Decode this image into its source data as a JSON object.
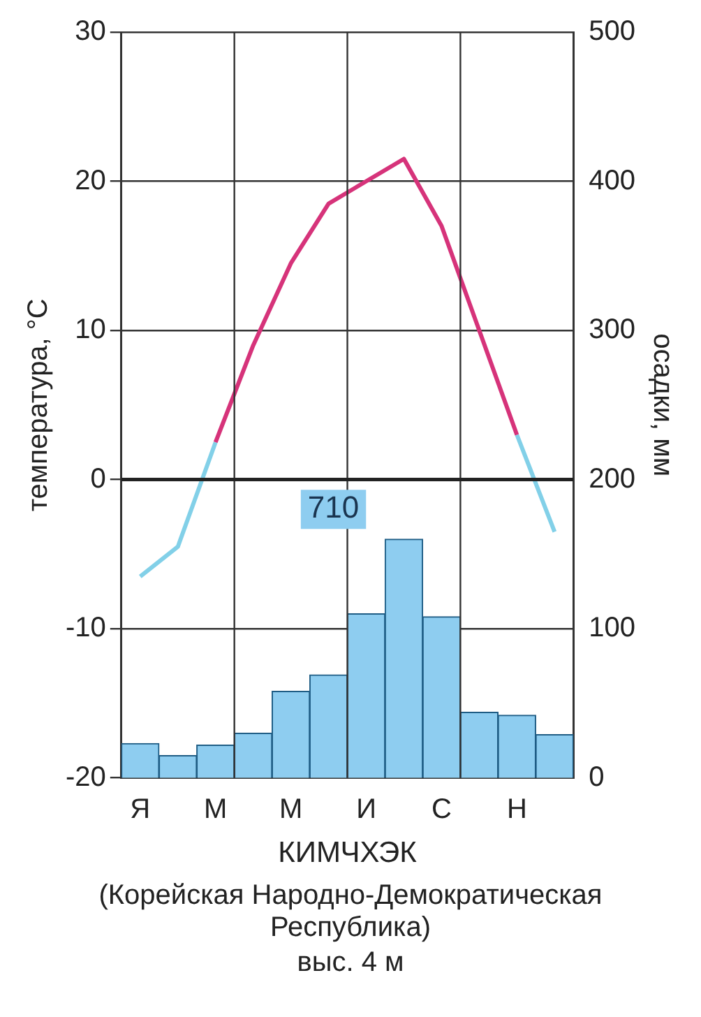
{
  "chart_data": {
    "type": "bar",
    "xlabel": "КИМЧХЭК",
    "ylabel": "температура, °С",
    "y2label": "осадки, мм",
    "categories": [
      "Я",
      null,
      "М",
      null,
      "М",
      null,
      "И",
      null,
      "С",
      null,
      "Н",
      null
    ],
    "series": [
      {
        "axis": "y2",
        "color": "#8ecdf0",
        "values": [
          23,
          15,
          22,
          30,
          58,
          69,
          110,
          160,
          108,
          44,
          42,
          29
        ]
      },
      {
        "type": "line",
        "axis": "y",
        "color": "#d6337a",
        "values": [
          null,
          null,
          2.5,
          9,
          14.5,
          18.5,
          20,
          21.5,
          17,
          10,
          3,
          null
        ]
      },
      {
        "type": "line",
        "axis": "y",
        "color": "#82d0e8",
        "values": [
          -6.5,
          -4.5,
          2.5,
          null,
          null,
          null,
          null,
          null,
          null,
          null,
          3,
          -3.5
        ]
      }
    ],
    "ylim": [
      -20,
      30
    ],
    "yticks": [
      -20,
      -10,
      0,
      10,
      20,
      30
    ],
    "y2lim": [
      0,
      500
    ],
    "y2ticks": [
      0,
      100,
      200,
      300,
      400,
      500
    ],
    "grid": true,
    "marker": "none",
    "ref_lines": [
      {
        "axis": "y",
        "value": 0,
        "color": "#222222"
      }
    ],
    "annotations": [
      "710",
      "(Корейская Народно-Демократическая Республика)",
      "выс. 4 м"
    ]
  }
}
